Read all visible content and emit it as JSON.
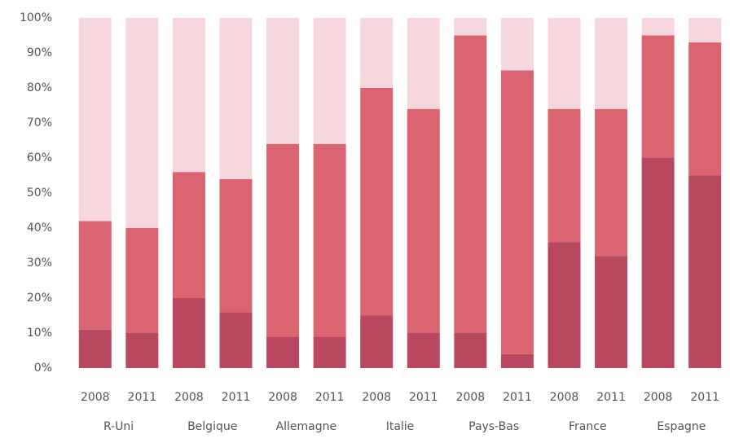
{
  "chart_data": {
    "type": "stacked-bar",
    "categories": [
      "2008",
      "2011",
      "2008",
      "2011",
      "2008",
      "2011",
      "2008",
      "2011",
      "2008",
      "2011",
      "2008",
      "2011",
      "2008",
      "2011"
    ],
    "groups": [
      "R-Uni",
      "Belgique",
      "Allemagne",
      "Italie",
      "Pays-Bas",
      "France",
      "Espagne"
    ],
    "series": [
      {
        "color": "#b8485f",
        "values": [
          11,
          10,
          20,
          16,
          9,
          9,
          15,
          10,
          10,
          4,
          36,
          32,
          60,
          55
        ]
      },
      {
        "color": "#da6470",
        "values": [
          31,
          30,
          36,
          38,
          55,
          55,
          65,
          64,
          85,
          81,
          38,
          42,
          35,
          38
        ]
      },
      {
        "color": "#f6d7dd",
        "values": [
          58,
          60,
          44,
          46,
          36,
          36,
          20,
          26,
          5,
          15,
          26,
          26,
          5,
          7
        ]
      }
    ],
    "ylim": [
      0,
      100
    ],
    "yticks": [
      {
        "value": 0,
        "label": "0%"
      },
      {
        "value": 10,
        "label": "10%"
      },
      {
        "value": 20,
        "label": "20%"
      },
      {
        "value": 30,
        "label": "30%"
      },
      {
        "value": 40,
        "label": "40%"
      },
      {
        "value": 50,
        "label": "50%"
      },
      {
        "value": 60,
        "label": "60%"
      },
      {
        "value": 70,
        "label": "70%"
      },
      {
        "value": 80,
        "label": "80%"
      },
      {
        "value": 90,
        "label": "90%"
      },
      {
        "value": 100,
        "label": "100%"
      }
    ],
    "grid": false
  }
}
